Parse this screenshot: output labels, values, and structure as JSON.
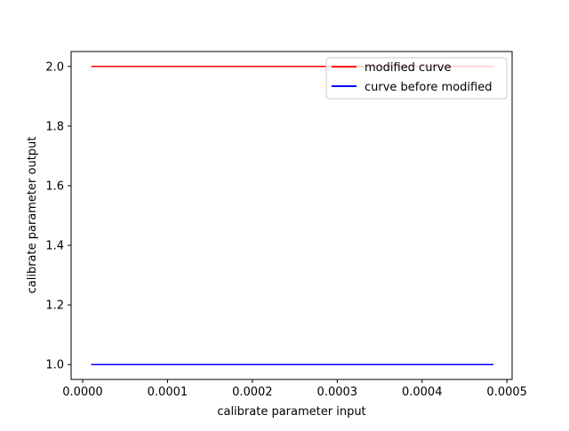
{
  "chart_data": {
    "type": "line",
    "title": "",
    "xlabel": "calibrate parameter input",
    "ylabel": "calibrate parameter output",
    "xlim": [
      -1.36e-05,
      0.0005061
    ],
    "ylim": [
      0.95,
      2.05
    ],
    "xticks": [
      0.0,
      0.0001,
      0.0002,
      0.0003,
      0.0004,
      0.0005
    ],
    "xtick_labels": [
      "0.0000",
      "0.0001",
      "0.0002",
      "0.0003",
      "0.0004",
      "0.0005"
    ],
    "yticks": [
      1.0,
      1.2,
      1.4,
      1.6,
      1.8,
      2.0
    ],
    "ytick_labels": [
      "1.0",
      "1.2",
      "1.4",
      "1.6",
      "1.8",
      "2.0"
    ],
    "grid": false,
    "legend_position": "upper right",
    "series": [
      {
        "name": "modified curve",
        "color": "#ff0000",
        "x": [
          1e-05,
          0.000484
        ],
        "y": [
          2.0,
          2.0
        ]
      },
      {
        "name": "curve before modified",
        "color": "#0000ff",
        "x": [
          1e-05,
          0.000484
        ],
        "y": [
          1.0,
          1.0
        ]
      }
    ]
  }
}
